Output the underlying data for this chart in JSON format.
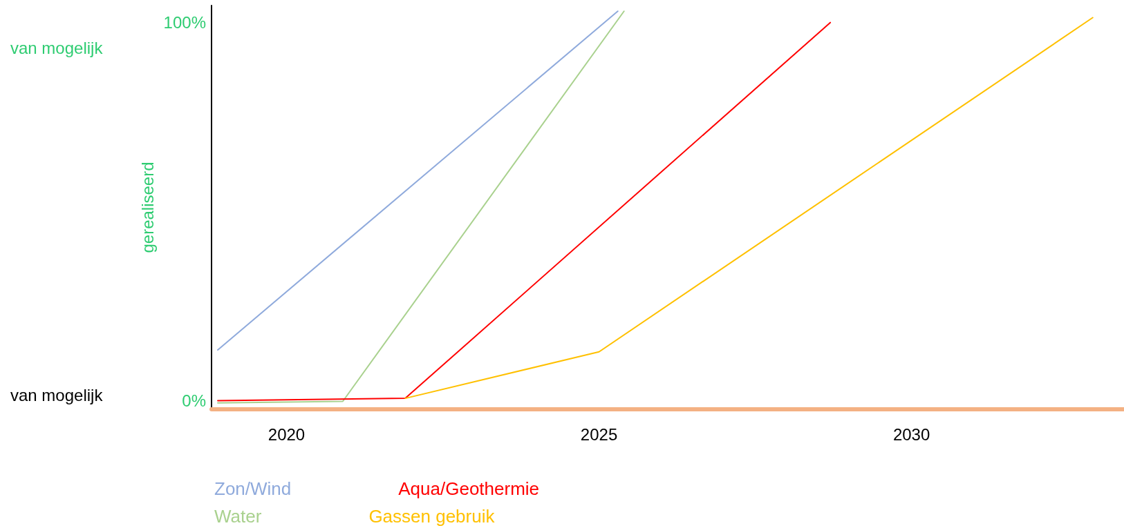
{
  "chart_data": {
    "type": "line",
    "ylabel": "gerealiseerd",
    "xlim": [
      2018.8,
      2033.4
    ],
    "xticks": [
      2020,
      2025,
      2030
    ],
    "ylim": [
      -2.3,
      104.5
    ],
    "yticks": [
      {
        "value": 0,
        "label": "0%"
      },
      {
        "value": 100,
        "label": "100%"
      }
    ],
    "series": [
      {
        "name": "Zon/Wind",
        "color": "#8faadc",
        "x": [
          2018.9,
          2025.3
        ],
        "values": [
          13.4,
          103
        ]
      },
      {
        "name": "Water",
        "color": "#a9d18e",
        "x": [
          2018.9,
          2020.9,
          2025.4
        ],
        "values": [
          -0.6,
          -0.2,
          103
        ]
      },
      {
        "name": "Aqua/Geothermie",
        "color": "#ff0000",
        "x": [
          2018.9,
          2021.9,
          2028.7
        ],
        "values": [
          0,
          0.6,
          100
        ]
      },
      {
        "name": "Gassen gebruik",
        "color": "#ffc000",
        "x": [
          2021.9,
          2025.0,
          2032.9
        ],
        "values": [
          0.6,
          12.9,
          101.3
        ]
      }
    ],
    "annotations": [
      "van mogelijk",
      "van mogelijk"
    ],
    "grid": false,
    "legend": "bottom left",
    "marker": "none",
    "line_style": "solid"
  }
}
